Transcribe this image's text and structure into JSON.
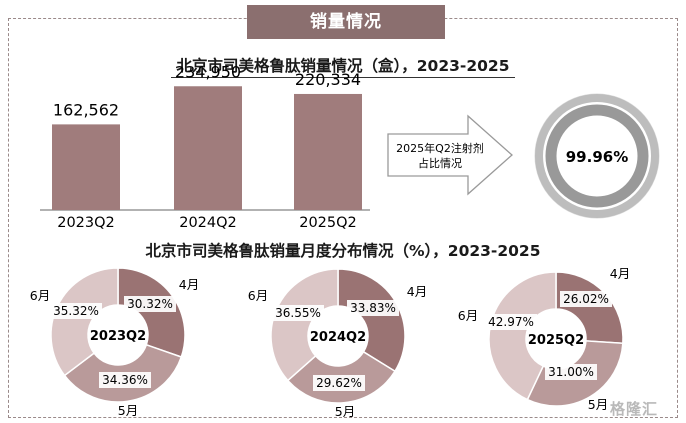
{
  "section_title": "销量情况",
  "watermark": "格隆汇",
  "colors": {
    "bar": "#a07c7c",
    "banner": "#8b6f6f",
    "ring_outer": "#bdbdbd",
    "ring_inner": "#999999",
    "q4": "#9a7373",
    "q5": "#b99a9a",
    "q6": "#dbc6c6"
  },
  "chart_data": [
    {
      "type": "bar",
      "title": "北京市司美格鲁肽销量情况（盒），2023-2025",
      "categories": [
        "2023Q2",
        "2024Q2",
        "2025Q2"
      ],
      "values": [
        162562,
        234950,
        220334
      ],
      "value_labels": [
        "162,562",
        "234,950",
        "220,334"
      ],
      "ylim": [
        0,
        300000
      ],
      "grid": false,
      "legend": "none"
    },
    {
      "type": "pie",
      "title": "",
      "callout": "2025年Q2注射剂\n占比情况",
      "center_label": "99.96%",
      "values": [
        99.96,
        0.04
      ]
    },
    {
      "type": "pie",
      "title": "北京市司美格鲁肽销量月度分布情况（%），2023-2025",
      "donuts": [
        {
          "center_label": "2023Q2",
          "slices": [
            {
              "name": "4月",
              "value": 30.32,
              "label": "30.32%"
            },
            {
              "name": "5月",
              "value": 34.36,
              "label": "34.36%"
            },
            {
              "name": "6月",
              "value": 35.32,
              "label": "35.32%"
            }
          ]
        },
        {
          "center_label": "2024Q2",
          "slices": [
            {
              "name": "4月",
              "value": 33.83,
              "label": "33.83%"
            },
            {
              "name": "5月",
              "value": 29.62,
              "label": "29.62%"
            },
            {
              "name": "6月",
              "value": 36.55,
              "label": "36.55%"
            }
          ]
        },
        {
          "center_label": "2025Q2",
          "slices": [
            {
              "name": "4月",
              "value": 26.02,
              "label": "26.02%"
            },
            {
              "name": "5月",
              "value": 31.0,
              "label": "31.00%"
            },
            {
              "name": "6月",
              "value": 42.97,
              "label": "42.97%"
            }
          ]
        }
      ]
    }
  ]
}
